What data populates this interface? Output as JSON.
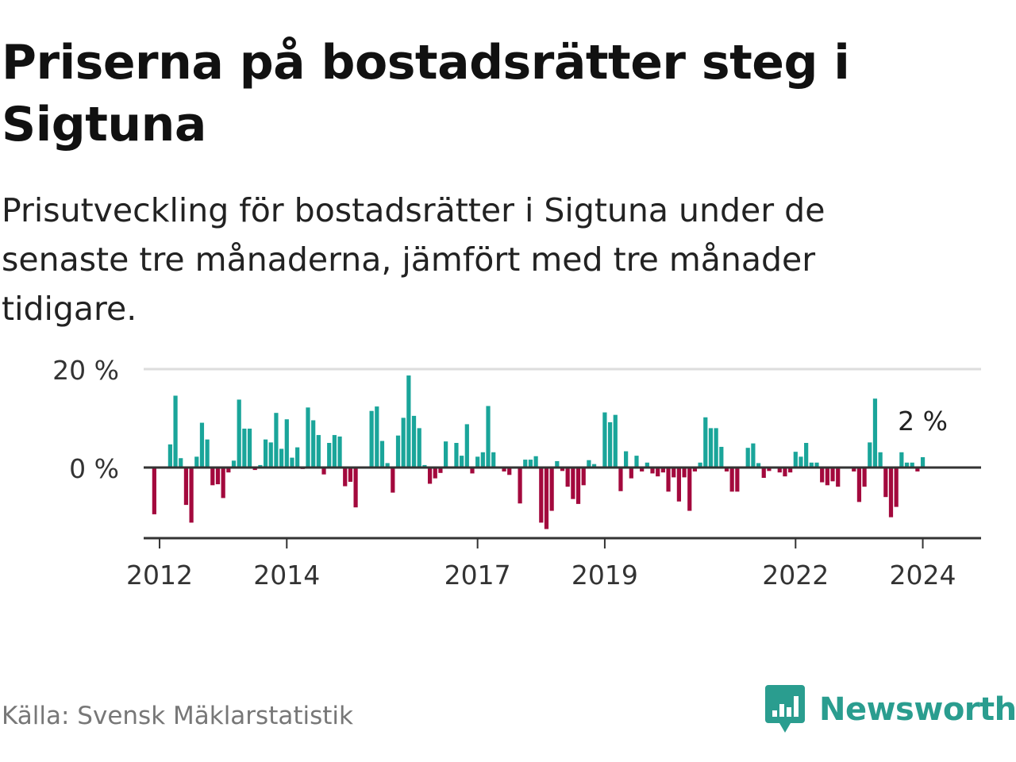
{
  "title": "Priserna på bostadsrätter steg i Sigtuna",
  "subtitle": "Prisutveckling för bostadsrätter i Sigtuna under de senaste tre månaderna, jämfört med tre månader tidigare.",
  "source": "Källa: Svensk Mäklarstatistik",
  "brand": "Newsworthy",
  "colors": {
    "positive": "#1aa59a",
    "negative": "#a3093d",
    "grid": "#dddddd",
    "axis": "#333333",
    "brand": "#2a9d8f"
  },
  "chart_data": {
    "type": "bar",
    "title": "Priserna på bostadsrätter steg i Sigtuna",
    "ylabel": "",
    "xlabel": "",
    "unit": "%",
    "ylim": [
      -15,
      20
    ],
    "yticks": [
      0,
      20
    ],
    "ytick_labels": [
      "0 %",
      "20 %"
    ],
    "x_start": "2011-10",
    "x_end": "2024-12",
    "xticks": [
      2012,
      2014,
      2017,
      2019,
      2022,
      2024
    ],
    "xtick_labels": [
      "2012",
      "2014",
      "2017",
      "2019",
      "2022",
      "2024"
    ],
    "annotation": "2 %",
    "series": [
      {
        "name": "Prisutveckling",
        "start": "2011-12",
        "values": [
          -9.5,
          0,
          0,
          4.7,
          14.6,
          1.9,
          -7.6,
          -11.2,
          2.2,
          9.1,
          5.7,
          -3.6,
          -3.4,
          -6.2,
          -1.0,
          1.4,
          13.8,
          7.9,
          7.9,
          -0.5,
          0.5,
          5.7,
          5.1,
          11.1,
          3.8,
          9.8,
          2.0,
          4.1,
          -0.3,
          12.2,
          9.6,
          6.6,
          -1.4,
          5.0,
          6.6,
          6.3,
          -3.8,
          -2.9,
          -8.1,
          0,
          0,
          11.5,
          12.4,
          5.4,
          0.9,
          -5.1,
          6.5,
          10.1,
          18.7,
          10.5,
          8.0,
          0.5,
          -3.3,
          -2.2,
          -1.1,
          5.3,
          0,
          5.0,
          2.4,
          8.8,
          -1.2,
          2.2,
          3.1,
          12.5,
          3.1,
          0,
          -0.8,
          -1.5,
          0,
          -7.3,
          1.6,
          1.6,
          2.3,
          -11.2,
          -12.5,
          -8.8,
          1.3,
          -0.7,
          -3.9,
          -6.4,
          -7.4,
          -3.6,
          1.5,
          0.7,
          0,
          11.2,
          9.2,
          10.7,
          -4.8,
          3.3,
          -2.2,
          2.4,
          -0.8,
          1.0,
          -1.2,
          -1.8,
          -1.0,
          -4.9,
          -2.0,
          -6.9,
          -2.0,
          -8.8,
          -0.8,
          1.0,
          10.2,
          8.0,
          8.0,
          4.2,
          -0.8,
          -4.9,
          -4.9,
          0,
          4.0,
          4.9,
          0.9,
          -2.1,
          -0.7,
          0,
          -1.0,
          -1.8,
          -1.0,
          3.2,
          2.2,
          5.0,
          1.0,
          1.0,
          -3.0,
          -3.6,
          -2.8,
          -3.9,
          0,
          0,
          -0.8,
          -7.0,
          -3.9,
          5.1,
          14.0,
          3.1,
          -6.0,
          -10.1,
          -8.0,
          3.1,
          1.0,
          1.0,
          -0.8,
          2.1
        ]
      }
    ]
  }
}
